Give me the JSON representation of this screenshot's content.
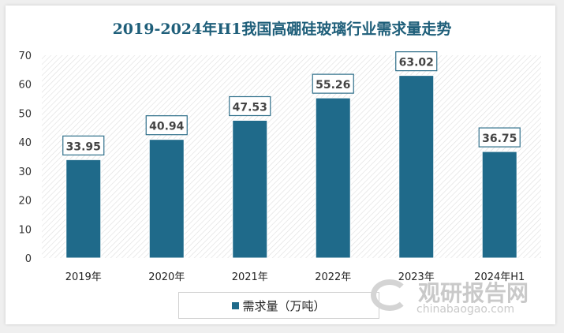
{
  "chart_data": {
    "type": "bar",
    "title": "2019-2024年H1我国高硼硅玻璃行业需求量走势",
    "categories": [
      "2019年",
      "2020年",
      "2021年",
      "2022年",
      "2023年",
      "2024年H1"
    ],
    "series": [
      {
        "name": "需求量（万吨）",
        "values": [
          33.95,
          40.94,
          47.53,
          55.26,
          63.02,
          36.75
        ]
      }
    ],
    "data_labels": [
      "33.95",
      "40.94",
      "47.53",
      "55.26",
      "63.02",
      "36.75"
    ],
    "ylim": [
      0,
      70
    ],
    "yticks": [
      "0",
      "10",
      "20",
      "30",
      "40",
      "50",
      "60",
      "70"
    ],
    "legend": "bottom",
    "grid": false,
    "colors": {
      "bar": "#1f6a8a",
      "title": "#1f5f7a"
    }
  },
  "watermark": {
    "cn": "观研报告网",
    "en": "chinabaogao.com"
  }
}
